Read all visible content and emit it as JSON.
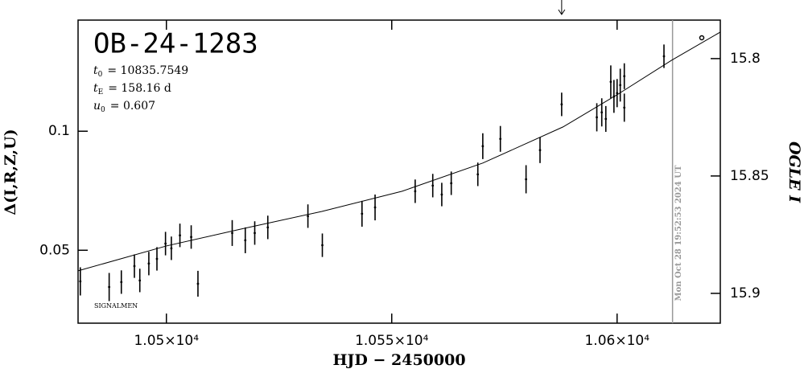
{
  "chart_data": {
    "type": "scatter",
    "title": "OB-24-1283",
    "params": [
      {
        "symbol": "t",
        "sub": "0",
        "text": "= 10835.7549"
      },
      {
        "symbol": "t",
        "sub": "E",
        "text": "= 158.16 d"
      },
      {
        "symbol": "u",
        "sub": "0",
        "text": "= 0.607"
      }
    ],
    "credit": "SIGNALMEN",
    "xlabel": "HJD − 2450000",
    "ylabel": "Δ(I,R,Z,U)",
    "y2label": "OGLE I",
    "xlim": [
      10480.4,
      10622.9
    ],
    "xticks": [
      {
        "value": 10500,
        "label": "1.05×10⁴"
      },
      {
        "value": 10550,
        "label": "1.055×10⁴"
      },
      {
        "value": 10600,
        "label": "1.06×10⁴"
      }
    ],
    "ylim": [
      0.0327,
      0.191
    ],
    "yticks": [
      0.05,
      0.1
    ],
    "ylog": true,
    "y2lim": [
      15.9127,
      15.7836
    ],
    "y2ticks": [
      15.8,
      15.85,
      15.9
    ],
    "now_line": {
      "x": 10612.3,
      "label": "Mon Oct 28 19:52:53 2024 UT",
      "color": "#999999"
    },
    "arrow_x": 10587.7,
    "series": [
      {
        "name": "OGLE",
        "axis": "y2",
        "color": "#000000",
        "x": [
          10480.9,
          10487.3,
          10490.0,
          10492.9,
          10494.1,
          10496.1,
          10497.9,
          10499.8,
          10501.1,
          10503.0,
          10505.5,
          10507.0,
          10514.6,
          10517.5,
          10519.6,
          10522.5,
          10531.4,
          10534.6,
          10543.4,
          10546.3,
          10555.2,
          10559.1,
          10561.1,
          10563.2,
          10569.1,
          10570.2,
          10574.1,
          10579.8,
          10582.9,
          10587.7,
          10595.5,
          10596.6,
          10597.5,
          10598.6,
          10599.3,
          10600.0,
          10600.7,
          10601.6,
          10601.6,
          10610.4
        ],
        "values": [
          15.8949,
          15.8973,
          15.8952,
          15.8884,
          15.8945,
          15.8873,
          15.8853,
          15.8788,
          15.8808,
          15.8753,
          15.876,
          15.8959,
          15.8743,
          15.8774,
          15.8743,
          15.8719,
          15.8671,
          15.8795,
          15.8661,
          15.8634,
          15.8565,
          15.8541,
          15.8579,
          15.8531,
          15.8493,
          15.8373,
          15.8342,
          15.8514,
          15.839,
          15.8195,
          15.825,
          15.8229,
          15.8257,
          15.8099,
          15.8161,
          15.8147,
          15.8113,
          15.8209,
          15.8075,
          15.799
        ],
        "errors": [
          0.006,
          0.006,
          0.005,
          0.005,
          0.005,
          0.005,
          0.005,
          0.005,
          0.005,
          0.005,
          0.005,
          0.0055,
          0.0055,
          0.0055,
          0.005,
          0.005,
          0.005,
          0.005,
          0.0055,
          0.0055,
          0.005,
          0.005,
          0.005,
          0.005,
          0.005,
          0.0055,
          0.0055,
          0.006,
          0.0055,
          0.005,
          0.006,
          0.006,
          0.0055,
          0.007,
          0.007,
          0.006,
          0.007,
          0.006,
          0.0055,
          0.005
        ]
      },
      {
        "name": "model",
        "axis": "y2",
        "color": "#000000",
        "x": [
          10480.4,
          10500,
          10516.6,
          10534.5,
          10552.3,
          10570.2,
          10588.0,
          10600,
          10612.1,
          10622.9
        ],
        "values": [
          15.8904,
          15.8798,
          15.8726,
          15.8651,
          15.8565,
          15.8445,
          15.8291,
          15.8154,
          15.8007,
          15.7887
        ]
      }
    ]
  }
}
